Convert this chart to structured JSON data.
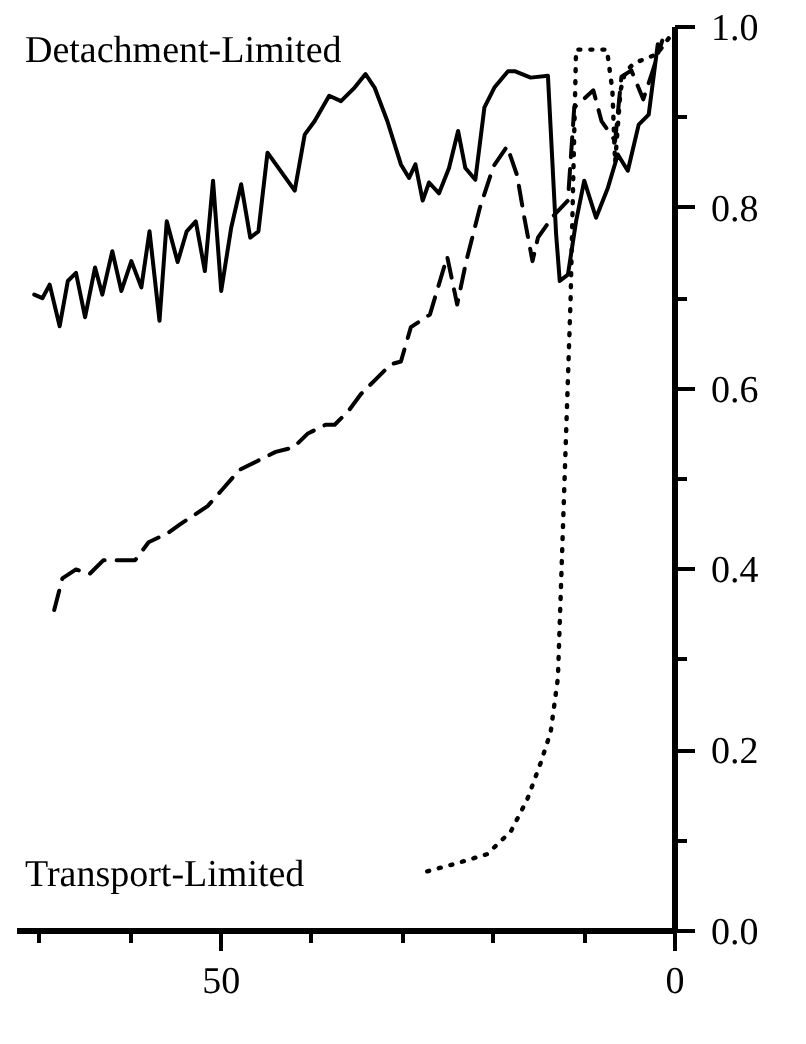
{
  "chart_data": {
    "type": "line",
    "annotations": [
      "Detachment-Limited",
      "Transport-Limited"
    ],
    "xlim": [
      72.5,
      0
    ],
    "ylim": [
      0,
      1
    ],
    "xticks": [
      {
        "value": 70,
        "label": null
      },
      {
        "value": 60,
        "label": null
      },
      50,
      {
        "value": 40,
        "label": null
      },
      {
        "value": 30,
        "label": null
      },
      {
        "value": 20,
        "label": null
      },
      {
        "value": 10,
        "label": null
      },
      0
    ],
    "yticks": [
      {
        "value": 0,
        "label": "0.0"
      },
      {
        "value": 0.1,
        "label": null
      },
      0.2,
      {
        "value": 0.3,
        "label": null
      },
      0.4,
      {
        "value": 0.5,
        "label": null
      },
      0.6,
      {
        "value": 0.7,
        "label": null
      },
      0.8,
      {
        "value": 0.9,
        "label": null
      },
      {
        "value": 1,
        "label": "1.0"
      }
    ],
    "grid": false,
    "series": [
      {
        "color": "#000000",
        "line_style": "solid",
        "x": [
          70.6,
          69.7,
          68.9,
          67.8,
          66.9,
          66.0,
          65.0,
          63.9,
          63.1,
          62.0,
          61.0,
          59.9,
          58.8,
          57.9,
          56.8,
          56.0,
          54.8,
          53.8,
          52.8,
          51.8,
          50.9,
          50.0,
          48.9,
          47.8,
          46.8,
          45.9,
          44.9,
          41.9,
          40.8,
          39.7,
          38.1,
          36.8,
          35.3,
          34.1,
          33.1,
          31.7,
          30.2,
          29.3,
          28.6,
          27.8,
          27.1,
          26.0,
          24.9,
          23.9,
          23.1,
          22.0,
          21.0,
          19.9,
          18.4,
          17.6,
          15.9,
          14.0,
          13.1,
          12.7,
          11.8,
          10.9,
          10.0,
          8.7,
          7.4,
          6.3,
          5.2,
          4.0,
          2.9,
          1.9
        ],
        "values": [
          0.704,
          0.7,
          0.715,
          0.669,
          0.719,
          0.728,
          0.679,
          0.734,
          0.704,
          0.752,
          0.708,
          0.741,
          0.712,
          0.774,
          0.675,
          0.785,
          0.74,
          0.774,
          0.785,
          0.73,
          0.83,
          0.708,
          0.778,
          0.826,
          0.767,
          0.774,
          0.861,
          0.819,
          0.881,
          0.896,
          0.924,
          0.918,
          0.933,
          0.948,
          0.933,
          0.896,
          0.848,
          0.833,
          0.848,
          0.808,
          0.828,
          0.816,
          0.844,
          0.885,
          0.844,
          0.831,
          0.911,
          0.933,
          0.951,
          0.951,
          0.944,
          0.946,
          0.771,
          0.719,
          0.726,
          0.785,
          0.83,
          0.789,
          0.822,
          0.859,
          0.841,
          0.892,
          0.903,
          0.981
        ]
      },
      {
        "color": "#000000",
        "line_style": "dashed",
        "x": [
          68.4,
          67.5,
          66.0,
          64.5,
          63.0,
          61.0,
          59.5,
          58.0,
          55.9,
          54.5,
          53.0,
          51.5,
          50.0,
          48.0,
          46.0,
          44.0,
          42.0,
          40.5,
          38.5,
          37.5,
          36.0,
          34.6,
          33.0,
          31.3,
          30.2,
          29.1,
          27.0,
          25.1,
          24.0,
          23.0,
          21.5,
          20.0,
          18.5,
          17.4,
          16.6,
          15.7,
          15.1,
          13.5,
          11.8,
          11.1,
          10.3,
          9.0,
          8.1,
          6.6,
          5.9,
          4.8,
          3.5,
          2.5,
          1.4
        ],
        "values": [
          0.355,
          0.39,
          0.4,
          0.395,
          0.41,
          0.41,
          0.41,
          0.43,
          0.44,
          0.45,
          0.46,
          0.47,
          0.487,
          0.51,
          0.52,
          0.53,
          0.535,
          0.55,
          0.56,
          0.56,
          0.575,
          0.594,
          0.61,
          0.627,
          0.63,
          0.668,
          0.682,
          0.746,
          0.693,
          0.741,
          0.8,
          0.846,
          0.868,
          0.836,
          0.789,
          0.741,
          0.767,
          0.79,
          0.808,
          0.911,
          0.918,
          0.93,
          0.896,
          0.874,
          0.945,
          0.952,
          0.92,
          0.95,
          0.985
        ]
      },
      {
        "color": "#000000",
        "line_style": "dotted",
        "x": [
          27.3,
          24.0,
          20.7,
          18.1,
          16.3,
          14.8,
          13.7,
          12.9,
          12.2,
          11.5,
          10.9,
          7.5,
          6.9,
          6.6,
          6.0,
          5.5,
          4.5,
          2.0,
          0.5
        ],
        "values": [
          0.066,
          0.075,
          0.085,
          0.11,
          0.145,
          0.186,
          0.22,
          0.28,
          0.49,
          0.7,
          0.975,
          0.975,
          0.93,
          0.85,
          0.93,
          0.95,
          0.96,
          0.97,
          0.99
        ]
      }
    ]
  }
}
